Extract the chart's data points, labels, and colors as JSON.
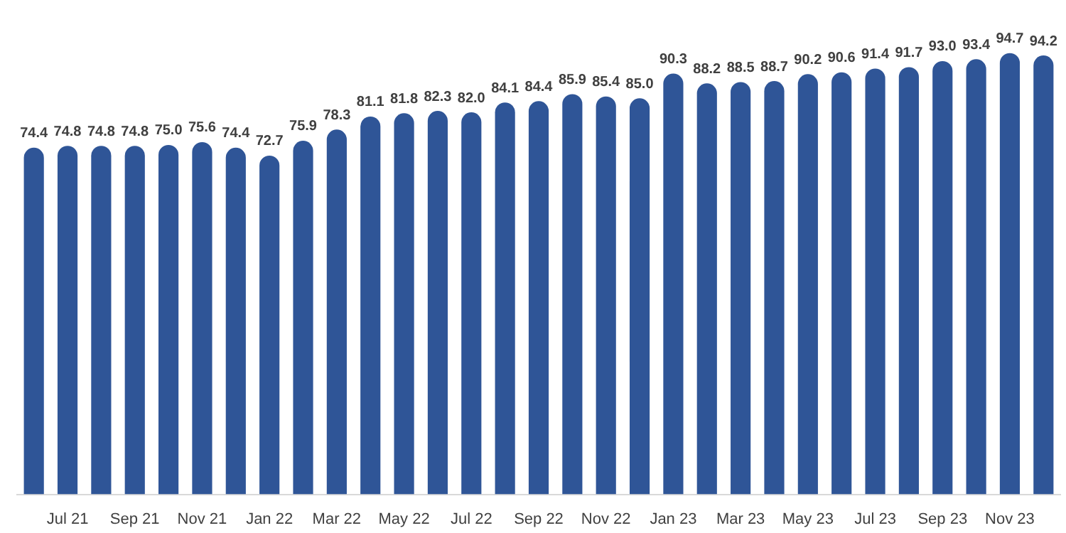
{
  "chart_data": {
    "type": "bar",
    "categories": [
      null,
      "Jul 21",
      null,
      "Sep 21",
      null,
      "Nov 21",
      null,
      "Jan 22",
      null,
      "Mar 22",
      null,
      "May 22",
      null,
      "Jul 22",
      null,
      "Sep 22",
      null,
      "Nov 22",
      null,
      "Jan 23",
      null,
      "Mar 23",
      null,
      "May 23",
      null,
      "Jul 23",
      null,
      "Sep 23",
      null,
      "Nov 23",
      null
    ],
    "values": [
      74.4,
      74.8,
      74.8,
      74.8,
      75.0,
      75.6,
      74.4,
      72.7,
      75.9,
      78.3,
      81.1,
      81.8,
      82.3,
      82.0,
      84.1,
      84.4,
      85.9,
      85.4,
      85.0,
      90.3,
      88.2,
      88.5,
      88.7,
      90.2,
      90.6,
      91.4,
      91.7,
      93.0,
      93.4,
      94.7,
      94.2
    ],
    "value_labels": [
      "74.4",
      "74.8",
      "74.8",
      "74.8",
      "75.0",
      "75.6",
      "74.4",
      "72.7",
      "75.9",
      "78.3",
      "81.1",
      "81.8",
      "82.3",
      "82.0",
      "84.1",
      "84.4",
      "85.9",
      "85.4",
      "85.0",
      "90.3",
      "88.2",
      "88.5",
      "88.7",
      "90.2",
      "90.6",
      "91.4",
      "91.7",
      "93.0",
      "93.4",
      "94.7",
      "94.2"
    ],
    "color": "#2f5597",
    "tick_labels": "x",
    "grid": false,
    "legend": false
  }
}
